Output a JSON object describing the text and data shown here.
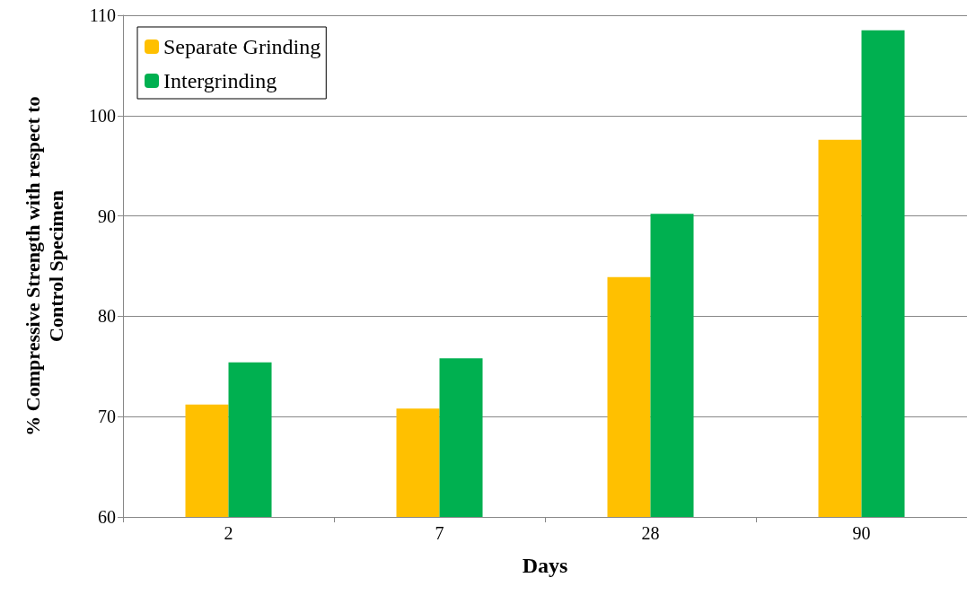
{
  "chart_data": {
    "type": "bar",
    "xlabel": "Days",
    "ylabel": "% Compressive Strength with respect to\nControl Specimen",
    "categories": [
      "2",
      "7",
      "28",
      "90"
    ],
    "series": [
      {
        "name": "Separate Grinding",
        "color": "#ffc000",
        "values": [
          71.2,
          70.8,
          83.9,
          97.6
        ]
      },
      {
        "name": "Intergrinding",
        "color": "#00b050",
        "values": [
          75.4,
          75.8,
          90.2,
          108.5
        ]
      }
    ],
    "ylim": [
      60,
      110
    ],
    "yticks": [
      60,
      70,
      80,
      90,
      100,
      110
    ],
    "grid": "y",
    "legend": "top left"
  }
}
